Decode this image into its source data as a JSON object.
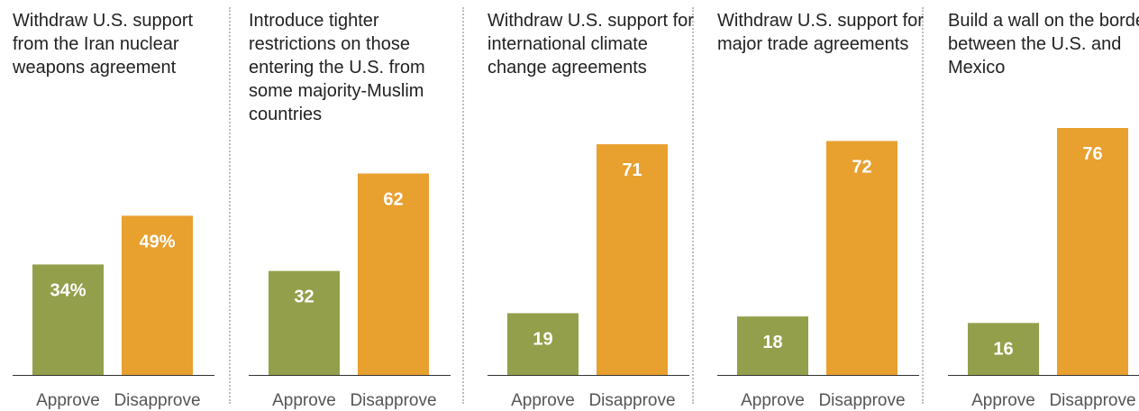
{
  "chart_data": {
    "type": "bar",
    "categories": [
      "Approve",
      "Disapprove"
    ],
    "colors": {
      "Approve": "#949f4b",
      "Disapprove": "#e8a02f"
    },
    "panels": [
      {
        "title": "Withdraw U.S. support from the Iran nuclear weapons agreement",
        "values": [
          34,
          49
        ],
        "labels": [
          "34%",
          "49%"
        ]
      },
      {
        "title": "Introduce tighter restrictions on those entering the U.S. from some majority-Muslim countries",
        "values": [
          32,
          62
        ],
        "labels": [
          "32",
          "62"
        ]
      },
      {
        "title": "Withdraw U.S. support for international climate change agreements",
        "values": [
          19,
          71
        ],
        "labels": [
          "19",
          "71"
        ]
      },
      {
        "title": "Withdraw U.S. support for major trade agreements",
        "values": [
          18,
          72
        ],
        "labels": [
          "18",
          "72"
        ]
      },
      {
        "title": "Build a wall on the border between the U.S. and Mexico",
        "values": [
          16,
          76
        ],
        "labels": [
          "16",
          "76"
        ]
      }
    ]
  }
}
